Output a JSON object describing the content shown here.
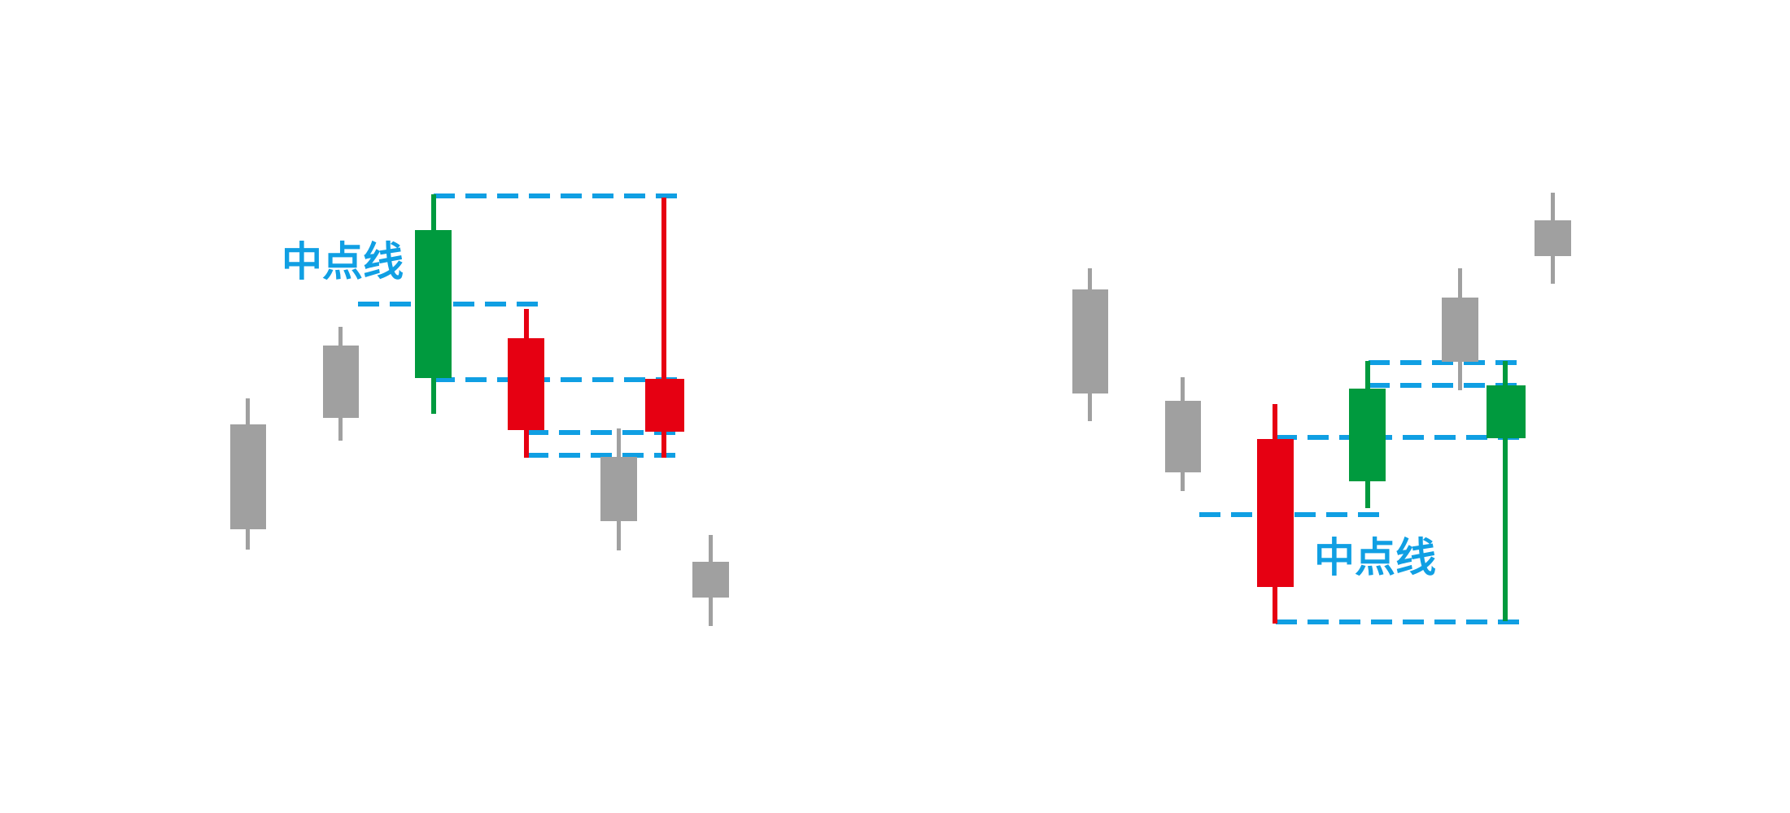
{
  "colors": {
    "background": "#ffffff",
    "neutral_candle": "#a0a0a0",
    "up_candle": "#009a3e",
    "down_candle": "#e60012",
    "guide_line": "#109fe3",
    "label": "#109fe3"
  },
  "labels": {
    "left_midpoint": "中点线",
    "right_midpoint": "中点线"
  },
  "left_group": {
    "candles": [
      {
        "id": "l1",
        "role": "neutral"
      },
      {
        "id": "l2",
        "role": "neutral"
      },
      {
        "id": "l3",
        "role": "up"
      },
      {
        "id": "l4",
        "role": "down"
      },
      {
        "id": "l5",
        "role": "neutral"
      },
      {
        "id": "l6",
        "role": "down"
      },
      {
        "id": "l7",
        "role": "neutral"
      }
    ]
  },
  "right_group": {
    "candles": [
      {
        "id": "r1",
        "role": "neutral"
      },
      {
        "id": "r2",
        "role": "neutral"
      },
      {
        "id": "r3",
        "role": "down"
      },
      {
        "id": "r4",
        "role": "up"
      },
      {
        "id": "r5",
        "role": "neutral"
      },
      {
        "id": "r6",
        "role": "up"
      },
      {
        "id": "r7",
        "role": "neutral"
      }
    ]
  }
}
